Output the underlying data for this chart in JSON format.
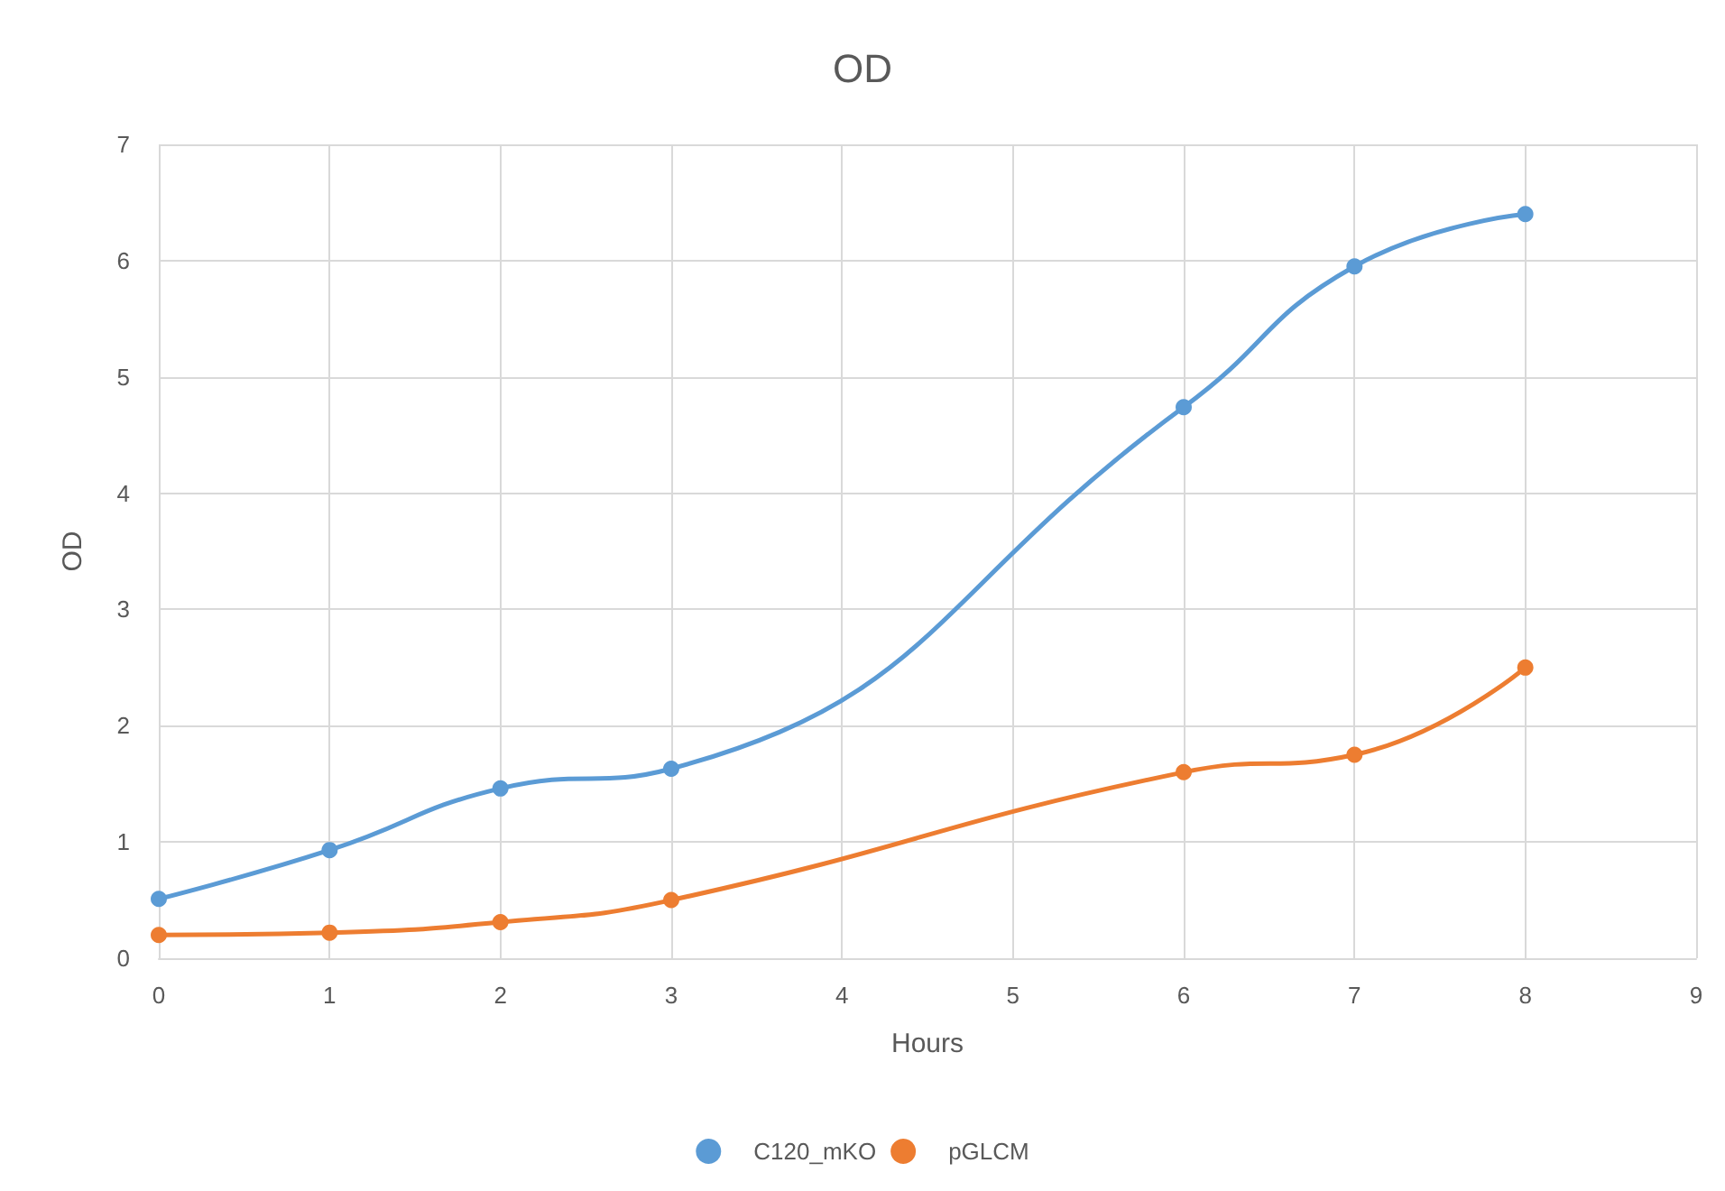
{
  "chart_data": {
    "type": "line",
    "title": "OD",
    "xlabel": "Hours",
    "ylabel": "OD",
    "x": [
      0,
      1,
      2,
      3,
      6,
      7,
      8
    ],
    "series": [
      {
        "name": "C120_mKO",
        "color": "#5b9bd5",
        "values": [
          0.51,
          0.93,
          1.46,
          1.63,
          4.74,
          5.95,
          6.4
        ]
      },
      {
        "name": "pGLCM",
        "color": "#ed7d31",
        "values": [
          0.2,
          0.22,
          0.31,
          0.5,
          1.6,
          1.75,
          2.5
        ]
      }
    ],
    "xlim": [
      0,
      9
    ],
    "xticks": [
      0,
      1,
      2,
      3,
      4,
      5,
      6,
      7,
      8,
      9
    ],
    "ylim": [
      0,
      7
    ],
    "yticks": [
      0,
      1,
      2,
      3,
      4,
      5,
      6,
      7
    ],
    "grid": true,
    "legend": "bottom",
    "marker": "circle",
    "line_style": "solid"
  }
}
